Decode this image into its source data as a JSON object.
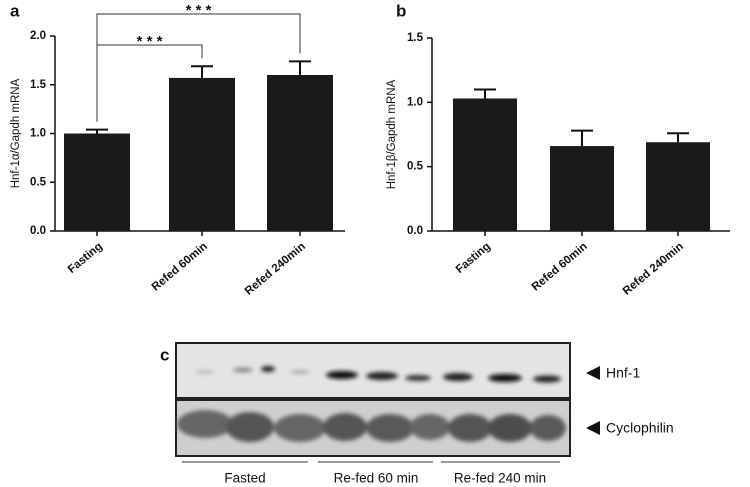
{
  "chart_data": [
    {
      "type": "bar",
      "panel": "a",
      "ylabel": "Hnf-1α/Gapdh mRNA",
      "categories": [
        "Fasting",
        "Refed 60min",
        "Refed 240min"
      ],
      "values": [
        1.0,
        1.57,
        1.6
      ],
      "errors": [
        0.04,
        0.12,
        0.14
      ],
      "color": "#1a1a1a",
      "ylim": [
        0,
        2.0
      ],
      "yticks": [
        {
          "value": 0,
          "label": "0.0"
        },
        {
          "value": 0.5,
          "label": "0.5"
        },
        {
          "value": 1,
          "label": "1.0"
        },
        {
          "value": 1.5,
          "label": "1.5"
        },
        {
          "value": 2,
          "label": "2.0"
        }
      ],
      "annotations": [
        "* * *",
        "* * *"
      ]
    },
    {
      "type": "bar",
      "panel": "b",
      "ylabel": "Hnf-1β/Gapdh mRNA",
      "categories": [
        "Fasting",
        "Refed 60min",
        "Refed 240min"
      ],
      "values": [
        1.03,
        0.66,
        0.69
      ],
      "errors": [
        0.07,
        0.12,
        0.07
      ],
      "color": "#1a1a1a",
      "ylim": [
        0,
        1.5
      ],
      "yticks": [
        {
          "value": 0,
          "label": "0.0"
        },
        {
          "value": 0.5,
          "label": "0.5"
        },
        {
          "value": 1,
          "label": "1.0"
        },
        {
          "value": 1.5,
          "label": "1.5"
        }
      ]
    }
  ],
  "blot": {
    "panel": "c",
    "bands": [
      "Hnf-1",
      "Cyclophilin"
    ],
    "groups": [
      "Fasted",
      "Re-fed 60 min",
      "Re-fed 240 min"
    ]
  }
}
